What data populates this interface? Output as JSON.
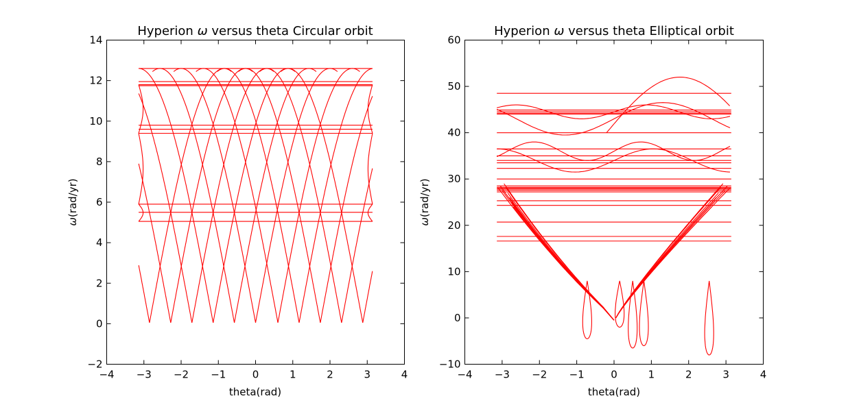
{
  "figure": {
    "background": "#ffffff"
  },
  "chart_data": [
    {
      "type": "line",
      "title_prefix": "Hyperion ",
      "title_symbol": "ω",
      "title_suffix": " versus theta Circular orbit",
      "xlabel": "theta(rad)",
      "ylabel_symbol": "ω",
      "ylabel_suffix": "(rad/yr)",
      "xlim": [
        -4,
        4
      ],
      "ylim": [
        -2,
        14
      ],
      "xticks": [
        -4,
        -3,
        -2,
        -1,
        0,
        1,
        2,
        3,
        4
      ],
      "yticks": [
        -2,
        0,
        2,
        4,
        6,
        8,
        10,
        12,
        14
      ],
      "grid": false,
      "line_color": "#ff0000",
      "orbit": "circular",
      "theta_range": [
        -3.14159,
        3.14159
      ],
      "omega_max": 12.6,
      "omega_min": 0.05,
      "cusp_thetas": [
        -2.85,
        -2.28,
        -1.71,
        -1.14,
        -0.57,
        0.0,
        0.6,
        1.17,
        1.74,
        2.31,
        2.88
      ],
      "horizontal_levels": [
        12.6,
        11.95,
        11.8,
        11.75,
        9.8,
        9.6,
        9.4,
        5.9,
        5.5,
        5.05
      ]
    },
    {
      "type": "line",
      "title_prefix": "Hyperion ",
      "title_symbol": "ω",
      "title_suffix": " versus theta Elliptical orbit",
      "xlabel": "theta(rad)",
      "ylabel_symbol": "ω",
      "ylabel_suffix": "(rad/yr)",
      "xlim": [
        -4,
        4
      ],
      "ylim": [
        -10,
        60
      ],
      "xticks": [
        -4,
        -3,
        -2,
        -1,
        0,
        1,
        2,
        3,
        4
      ],
      "yticks": [
        -10,
        0,
        10,
        20,
        30,
        40,
        50,
        60
      ],
      "grid": false,
      "line_color": "#ff0000",
      "orbit": "elliptical",
      "theta_range": [
        -3.14159,
        3.14159
      ],
      "horizontal_levels": [
        48.5,
        44.9,
        44.5,
        44.2,
        44.0,
        40.0,
        36.5,
        35.0,
        34.0,
        33.5,
        32.3,
        30.0,
        28.5,
        28.2,
        28.0,
        27.8,
        27.5,
        27.2,
        25.3,
        24.3,
        20.7,
        17.6,
        16.6
      ],
      "loops": [
        {
          "theta": -0.72,
          "omega_min": -4.5
        },
        {
          "theta": 0.15,
          "omega_min": -2.0
        },
        {
          "theta": 0.5,
          "omega_min": -6.5
        },
        {
          "theta": 0.8,
          "omega_min": -6.0
        },
        {
          "theta": 2.55,
          "omega_min": -8.0
        }
      ]
    }
  ]
}
